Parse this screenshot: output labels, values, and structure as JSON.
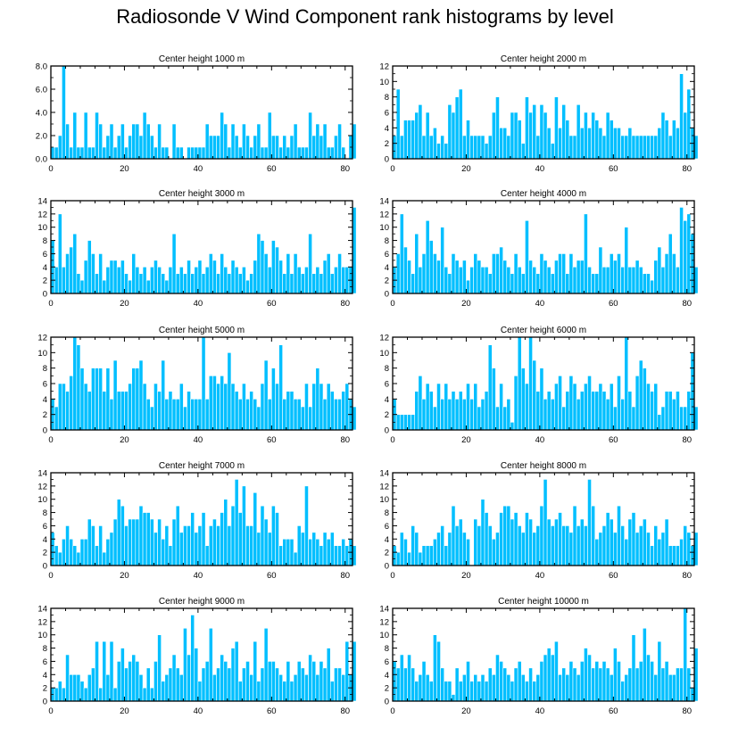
{
  "figure_title": "Radiosonde V Wind Component rank histograms by level",
  "colors": {
    "bar_fill": "#00BFFF",
    "bar_edge": "#ffffff",
    "axis": "#000000",
    "background": "#ffffff"
  },
  "chart_data": [
    {
      "type": "bar",
      "title": "Center height 1000 m",
      "xlim": [
        0,
        82
      ],
      "xticks": [
        0,
        20,
        40,
        60,
        80
      ],
      "ylim": [
        0,
        8
      ],
      "yticks": [
        0,
        2,
        4,
        6,
        8
      ],
      "ytick_labels": [
        "0.0",
        "2.0",
        "4.0",
        "6.0",
        "8.0"
      ],
      "values": [
        1,
        1,
        2,
        8,
        3,
        1,
        4,
        1,
        1,
        4,
        1,
        1,
        4,
        3,
        1,
        2,
        3,
        1,
        2,
        3,
        1,
        2,
        3,
        3,
        2,
        4,
        3,
        2,
        1,
        3,
        1,
        1,
        0,
        3,
        1,
        1,
        0,
        1,
        1,
        1,
        1,
        1,
        3,
        2,
        2,
        2,
        4,
        3,
        1,
        3,
        2,
        1,
        3,
        2,
        1,
        2,
        3,
        1,
        1,
        4,
        2,
        2,
        1,
        2,
        1,
        2,
        3,
        1,
        1,
        1,
        4,
        2,
        3,
        2,
        3,
        1,
        1,
        2,
        3,
        1,
        0,
        2,
        3
      ]
    },
    {
      "type": "bar",
      "title": "Center height 2000 m",
      "xlim": [
        0,
        82
      ],
      "xticks": [
        0,
        20,
        40,
        60,
        80
      ],
      "ylim": [
        0,
        12
      ],
      "yticks": [
        0,
        2,
        4,
        6,
        8,
        10,
        12
      ],
      "ytick_labels": [
        "0",
        "2",
        "4",
        "6",
        "8",
        "10",
        "12"
      ],
      "values": [
        3,
        9,
        3,
        5,
        5,
        5,
        6,
        7,
        3,
        6,
        3,
        4,
        2,
        3,
        2,
        7,
        6,
        8,
        9,
        3,
        5,
        3,
        3,
        3,
        3,
        2,
        3,
        6,
        8,
        4,
        4,
        3,
        6,
        6,
        5,
        2,
        8,
        6,
        7,
        3,
        7,
        6,
        4,
        2,
        8,
        4,
        7,
        5,
        3,
        3,
        7,
        4,
        6,
        4,
        6,
        5,
        4,
        3,
        6,
        5,
        4,
        4,
        3,
        3,
        4,
        3,
        3,
        3,
        3,
        3,
        3,
        3,
        4,
        6,
        5,
        3,
        5,
        4,
        11,
        6,
        9,
        4,
        3
      ]
    },
    {
      "type": "bar",
      "title": "Center height 3000 m",
      "xlim": [
        0,
        82
      ],
      "xticks": [
        0,
        20,
        40,
        60,
        80
      ],
      "ylim": [
        0,
        14
      ],
      "yticks": [
        0,
        2,
        4,
        6,
        8,
        10,
        12,
        14
      ],
      "ytick_labels": [
        "0",
        "2",
        "4",
        "6",
        "8",
        "10",
        "12",
        "14"
      ],
      "values": [
        8,
        4,
        12,
        4,
        6,
        7,
        9,
        3,
        2,
        5,
        8,
        6,
        3,
        6,
        2,
        4,
        5,
        5,
        4,
        5,
        3,
        2,
        6,
        4,
        3,
        4,
        2,
        4,
        5,
        4,
        3,
        2,
        4,
        9,
        3,
        4,
        3,
        5,
        3,
        4,
        5,
        3,
        4,
        6,
        5,
        3,
        6,
        4,
        3,
        5,
        4,
        3,
        4,
        2,
        3,
        5,
        9,
        8,
        6,
        4,
        8,
        7,
        5,
        3,
        6,
        3,
        6,
        4,
        3,
        4,
        9,
        3,
        4,
        3,
        5,
        6,
        3,
        4,
        6,
        4,
        4,
        4,
        13
      ]
    },
    {
      "type": "bar",
      "title": "Center height 4000 m",
      "xlim": [
        0,
        82
      ],
      "xticks": [
        0,
        20,
        40,
        60,
        80
      ],
      "ylim": [
        0,
        14
      ],
      "yticks": [
        0,
        2,
        4,
        6,
        8,
        10,
        12,
        14
      ],
      "ytick_labels": [
        "0",
        "2",
        "4",
        "6",
        "8",
        "10",
        "12",
        "14"
      ],
      "values": [
        4,
        6,
        12,
        7,
        5,
        3,
        9,
        4,
        6,
        11,
        8,
        6,
        5,
        10,
        4,
        3,
        6,
        5,
        4,
        5,
        2,
        4,
        6,
        5,
        4,
        4,
        3,
        6,
        6,
        7,
        5,
        4,
        3,
        6,
        4,
        3,
        11,
        5,
        4,
        3,
        6,
        5,
        4,
        3,
        5,
        6,
        6,
        3,
        6,
        4,
        5,
        5,
        12,
        4,
        3,
        3,
        7,
        4,
        4,
        6,
        5,
        6,
        4,
        10,
        4,
        4,
        5,
        4,
        3,
        3,
        2,
        5,
        7,
        4,
        6,
        9,
        6,
        4,
        13,
        11,
        12,
        9,
        4
      ]
    },
    {
      "type": "bar",
      "title": "Center height 5000 m",
      "xlim": [
        0,
        82
      ],
      "xticks": [
        0,
        20,
        40,
        60,
        80
      ],
      "ylim": [
        0,
        12
      ],
      "yticks": [
        0,
        2,
        4,
        6,
        8,
        10,
        12
      ],
      "ytick_labels": [
        "0",
        "2",
        "4",
        "6",
        "8",
        "10",
        "12"
      ],
      "values": [
        4,
        3,
        6,
        6,
        5,
        7,
        12,
        11,
        8,
        6,
        5,
        8,
        8,
        8,
        5,
        8,
        4,
        9,
        5,
        5,
        5,
        6,
        8,
        8,
        9,
        6,
        4,
        3,
        6,
        5,
        9,
        4,
        5,
        4,
        4,
        6,
        3,
        5,
        4,
        4,
        4,
        12,
        4,
        7,
        7,
        6,
        7,
        6,
        10,
        6,
        5,
        4,
        6,
        4,
        5,
        4,
        3,
        6,
        9,
        4,
        8,
        6,
        11,
        4,
        5,
        5,
        4,
        4,
        3,
        6,
        3,
        6,
        8,
        6,
        4,
        6,
        5,
        4,
        4,
        5,
        6,
        4,
        3
      ]
    },
    {
      "type": "bar",
      "title": "Center height 6000 m",
      "xlim": [
        0,
        82
      ],
      "xticks": [
        0,
        20,
        40,
        60,
        80
      ],
      "ylim": [
        0,
        12
      ],
      "yticks": [
        0,
        2,
        4,
        6,
        8,
        10,
        12
      ],
      "ytick_labels": [
        "0",
        "2",
        "4",
        "6",
        "8",
        "10",
        "12"
      ],
      "values": [
        4,
        2,
        2,
        2,
        2,
        2,
        5,
        7,
        4,
        6,
        5,
        3,
        6,
        4,
        6,
        4,
        5,
        4,
        5,
        4,
        6,
        4,
        6,
        3,
        4,
        5,
        11,
        8,
        3,
        6,
        3,
        4,
        1,
        7,
        12,
        8,
        6,
        12,
        9,
        5,
        8,
        4,
        5,
        4,
        6,
        7,
        3,
        5,
        7,
        6,
        4,
        5,
        6,
        7,
        5,
        5,
        6,
        5,
        4,
        6,
        3,
        7,
        4,
        12,
        5,
        3,
        7,
        9,
        8,
        6,
        5,
        6,
        2,
        3,
        5,
        5,
        4,
        5,
        3,
        3,
        5,
        10,
        3
      ]
    },
    {
      "type": "bar",
      "title": "Center height 7000 m",
      "xlim": [
        0,
        82
      ],
      "xticks": [
        0,
        20,
        40,
        60,
        80
      ],
      "ylim": [
        0,
        14
      ],
      "yticks": [
        0,
        2,
        4,
        6,
        8,
        10,
        12,
        14
      ],
      "ytick_labels": [
        "0",
        "2",
        "4",
        "6",
        "8",
        "10",
        "12",
        "14"
      ],
      "values": [
        5,
        3,
        2,
        4,
        6,
        4,
        3,
        2,
        4,
        4,
        7,
        6,
        3,
        6,
        2,
        4,
        5,
        7,
        10,
        9,
        6,
        7,
        7,
        7,
        9,
        8,
        8,
        7,
        5,
        7,
        4,
        6,
        3,
        7,
        9,
        5,
        6,
        6,
        8,
        5,
        6,
        8,
        3,
        6,
        7,
        6,
        8,
        10,
        6,
        9,
        13,
        8,
        12,
        6,
        6,
        11,
        5,
        9,
        7,
        5,
        9,
        8,
        3,
        4,
        4,
        4,
        2,
        6,
        5,
        12,
        4,
        5,
        4,
        3,
        5,
        4,
        5,
        3,
        3,
        4,
        3,
        4,
        3
      ]
    },
    {
      "type": "bar",
      "title": "Center height 8000 m",
      "xlim": [
        0,
        82
      ],
      "xticks": [
        0,
        20,
        40,
        60,
        80
      ],
      "ylim": [
        0,
        14
      ],
      "yticks": [
        0,
        2,
        4,
        6,
        8,
        10,
        12,
        14
      ],
      "ytick_labels": [
        "0",
        "2",
        "4",
        "6",
        "8",
        "10",
        "12",
        "14"
      ],
      "values": [
        3,
        2,
        5,
        4,
        2,
        6,
        5,
        2,
        3,
        3,
        3,
        4,
        5,
        6,
        3,
        5,
        9,
        6,
        7,
        5,
        4,
        0,
        7,
        6,
        10,
        8,
        6,
        4,
        5,
        8,
        9,
        9,
        7,
        8,
        6,
        5,
        8,
        7,
        5,
        6,
        9,
        13,
        7,
        6,
        7,
        8,
        6,
        6,
        5,
        9,
        6,
        7,
        6,
        13,
        9,
        4,
        5,
        6,
        8,
        7,
        5,
        9,
        6,
        4,
        7,
        8,
        5,
        6,
        7,
        5,
        3,
        6,
        4,
        5,
        7,
        3,
        3,
        3,
        4,
        6,
        5,
        3,
        5
      ]
    },
    {
      "type": "bar",
      "title": "Center height 9000 m",
      "xlim": [
        0,
        82
      ],
      "xticks": [
        0,
        20,
        40,
        60,
        80
      ],
      "ylim": [
        0,
        14
      ],
      "yticks": [
        0,
        2,
        4,
        6,
        8,
        10,
        12,
        14
      ],
      "ytick_labels": [
        "0",
        "2",
        "4",
        "6",
        "8",
        "10",
        "12",
        "14"
      ],
      "values": [
        2,
        2,
        3,
        2,
        7,
        4,
        4,
        4,
        3,
        2,
        4,
        5,
        9,
        2,
        9,
        4,
        9,
        2,
        6,
        8,
        5,
        6,
        7,
        6,
        4,
        2,
        5,
        2,
        6,
        10,
        3,
        4,
        5,
        7,
        5,
        4,
        11,
        7,
        13,
        8,
        3,
        5,
        6,
        11,
        4,
        5,
        7,
        6,
        5,
        8,
        9,
        3,
        5,
        6,
        4,
        9,
        3,
        5,
        11,
        6,
        6,
        5,
        4,
        3,
        6,
        3,
        4,
        6,
        5,
        4,
        7,
        6,
        4,
        6,
        5,
        8,
        3,
        5,
        5,
        4,
        9,
        4,
        9
      ]
    },
    {
      "type": "bar",
      "title": "Center height 10000 m",
      "xlim": [
        0,
        82
      ],
      "xticks": [
        0,
        20,
        40,
        60,
        80
      ],
      "ylim": [
        0,
        14
      ],
      "yticks": [
        0,
        2,
        4,
        6,
        8,
        10,
        12,
        14
      ],
      "ytick_labels": [
        "0",
        "2",
        "4",
        "6",
        "8",
        "10",
        "12",
        "14"
      ],
      "values": [
        6,
        5,
        7,
        5,
        7,
        5,
        3,
        4,
        6,
        4,
        3,
        10,
        9,
        5,
        3,
        3,
        1,
        5,
        3,
        4,
        6,
        3,
        4,
        3,
        4,
        3,
        5,
        4,
        7,
        6,
        5,
        4,
        3,
        5,
        6,
        4,
        3,
        5,
        3,
        4,
        6,
        7,
        8,
        7,
        9,
        4,
        5,
        4,
        6,
        5,
        4,
        6,
        8,
        7,
        5,
        6,
        5,
        6,
        5,
        4,
        8,
        6,
        3,
        4,
        5,
        10,
        5,
        6,
        11,
        7,
        6,
        4,
        9,
        5,
        6,
        4,
        4,
        5,
        5,
        14,
        5,
        2,
        8
      ]
    }
  ]
}
